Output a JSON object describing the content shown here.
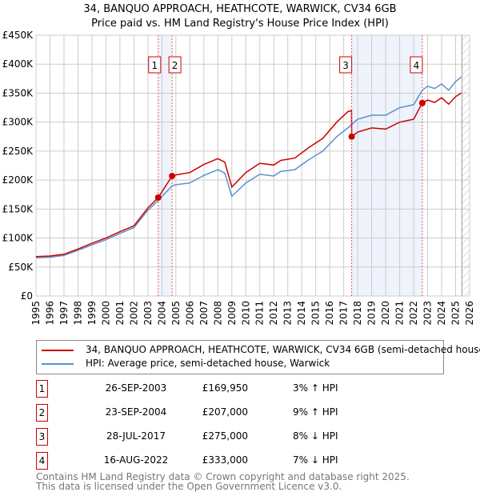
{
  "chart_data": {
    "type": "line",
    "title": "34, BANQUO APPROACH, HEATHCOTE, WARWICK, CV34 6GB",
    "subtitle": "Price paid vs. HM Land Registry's House Price Index (HPI)",
    "xlim": [
      1995,
      2026
    ],
    "ylim": [
      0,
      450000
    ],
    "x_ticks": [
      "1995",
      "1996",
      "1997",
      "1998",
      "1999",
      "2000",
      "2001",
      "2002",
      "2003",
      "2004",
      "2005",
      "2006",
      "2007",
      "2008",
      "2009",
      "2010",
      "2011",
      "2012",
      "2013",
      "2014",
      "2015",
      "2016",
      "2017",
      "2018",
      "2019",
      "2020",
      "2021",
      "2022",
      "2023",
      "2024",
      "2025",
      "2026"
    ],
    "y_ticks": [
      {
        "v": 0,
        "label": "£0"
      },
      {
        "v": 50000,
        "label": "£50K"
      },
      {
        "v": 100000,
        "label": "£100K"
      },
      {
        "v": 150000,
        "label": "£150K"
      },
      {
        "v": 200000,
        "label": "£200K"
      },
      {
        "v": 250000,
        "label": "£250K"
      },
      {
        "v": 300000,
        "label": "£300K"
      },
      {
        "v": 350000,
        "label": "£350K"
      },
      {
        "v": 400000,
        "label": "£400K"
      },
      {
        "v": 450000,
        "label": "£450K"
      }
    ],
    "grid": true,
    "shaded_ranges": [
      [
        2003.74,
        2004.73
      ],
      [
        2017.57,
        2022.62
      ]
    ],
    "hatch_from": 2025.45,
    "series": [
      {
        "name": "34, BANQUO APPROACH, HEATHCOTE, WARWICK, CV34 6GB (semi-detached house)",
        "color": "#cc0000",
        "x": [
          1995,
          1996,
          1997,
          1998,
          1999,
          2000,
          2001,
          2002,
          2003,
          2003.74,
          2004.73,
          2005,
          2006,
          2007,
          2008,
          2008.5,
          2009,
          2010,
          2011,
          2012,
          2012.5,
          2013.5,
          2014.5,
          2015.5,
          2016.5,
          2017.3,
          2017.56,
          2017.57,
          2018,
          2019,
          2020,
          2021,
          2022,
          2022.62,
          2023,
          2023.5,
          2024,
          2024.5,
          2025,
          2025.4
        ],
        "y": [
          68000,
          69000,
          72000,
          81000,
          91000,
          100000,
          111000,
          121000,
          152000,
          169950,
          207000,
          209000,
          213000,
          227000,
          237000,
          231000,
          188000,
          213000,
          229000,
          226000,
          234000,
          238000,
          256000,
          272000,
          300000,
          318000,
          320000,
          275000,
          283000,
          290000,
          288000,
          300000,
          305000,
          333000,
          338000,
          334000,
          342000,
          331000,
          344000,
          350000
        ]
      },
      {
        "name": "HPI: Average price, semi-detached house, Warwick",
        "color": "#5b8fd0",
        "x": [
          1995,
          1996,
          1997,
          1998,
          1999,
          2000,
          2001,
          2002,
          2003,
          2003.74,
          2004.73,
          2005,
          2006,
          2007,
          2008,
          2008.5,
          2009,
          2010,
          2011,
          2012,
          2012.5,
          2013.5,
          2014.5,
          2015.5,
          2016.5,
          2017.3,
          2017.57,
          2018,
          2019,
          2020,
          2021,
          2022,
          2022.62,
          2023,
          2023.5,
          2024,
          2024.5,
          2025,
          2025.4
        ],
        "y": [
          66000,
          67000,
          70000,
          79000,
          88000,
          97000,
          108000,
          118000,
          148000,
          165000,
          190000,
          192000,
          195000,
          208000,
          218000,
          212000,
          172000,
          195000,
          210000,
          207000,
          215000,
          218000,
          235000,
          250000,
          275000,
          290000,
          296000,
          305000,
          312000,
          312000,
          325000,
          330000,
          355000,
          362000,
          358000,
          366000,
          355000,
          370000,
          378000
        ]
      }
    ],
    "sales": [
      {
        "id": "1",
        "x": 2003.74,
        "y": 169950
      },
      {
        "id": "2",
        "x": 2004.73,
        "y": 207000
      },
      {
        "id": "3",
        "x": 2017.57,
        "y": 275000
      },
      {
        "id": "4",
        "x": 2022.62,
        "y": 333000
      }
    ]
  },
  "legend": [
    "34, BANQUO APPROACH, HEATHCOTE, WARWICK, CV34 6GB (semi-detached house)",
    "HPI: Average price, semi-detached house, Warwick"
  ],
  "table": [
    {
      "id": "1",
      "date": "26-SEP-2003",
      "price": "£169,950",
      "change": "3% ↑ HPI"
    },
    {
      "id": "2",
      "date": "23-SEP-2004",
      "price": "£207,000",
      "change": "9% ↑ HPI"
    },
    {
      "id": "3",
      "date": "28-JUL-2017",
      "price": "£275,000",
      "change": "8% ↓ HPI"
    },
    {
      "id": "4",
      "date": "16-AUG-2022",
      "price": "£333,000",
      "change": "7% ↓ HPI"
    }
  ],
  "footer": [
    "Contains HM Land Registry data © Crown copyright and database right 2025.",
    "This data is licensed under the Open Government Licence v3.0."
  ]
}
